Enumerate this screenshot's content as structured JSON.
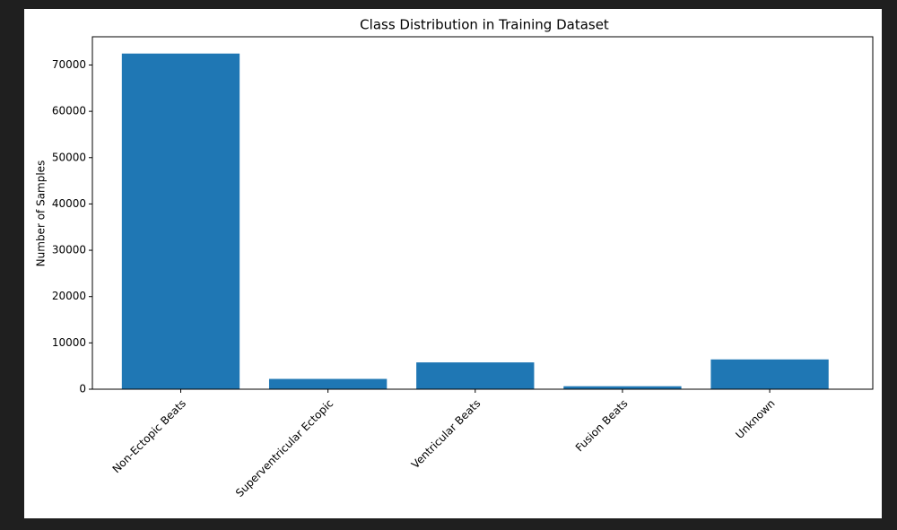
{
  "chart_data": {
    "type": "bar",
    "title": "Class Distribution in Training Dataset",
    "y_label": "Number of Samples",
    "categories": [
      "Non-Ectopic Beats",
      "Superventricular Ectopic",
      "Ventricular Beats",
      "Fusion Beats",
      "Unknown"
    ],
    "values": [
      72471,
      2223,
      5788,
      641,
      6431
    ],
    "color": "#1f77b4",
    "ylim": [
      0,
      76095
    ],
    "yticks": [
      0,
      10000,
      20000,
      30000,
      40000,
      50000,
      60000,
      70000
    ]
  }
}
